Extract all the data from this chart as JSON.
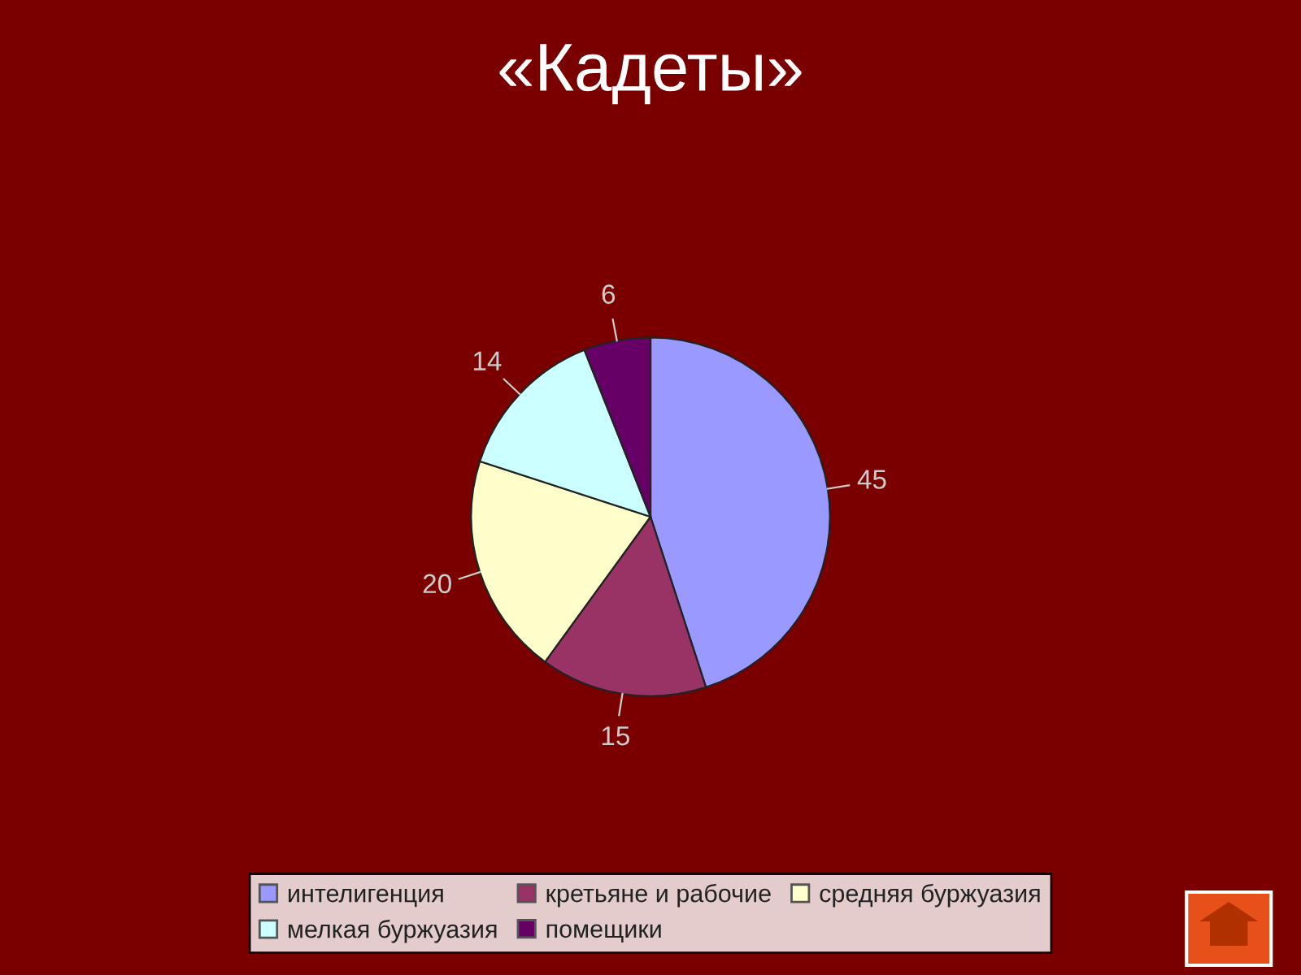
{
  "chart_data": {
    "type": "pie",
    "title": "«Кадеты»",
    "categories": [
      "интелигенция",
      "кретьяне и рабочие",
      "средняя буржуазия",
      "мелкая буржуазия",
      "помещики"
    ],
    "values": [
      45,
      15,
      20,
      14,
      6
    ],
    "colors": [
      "#9999ff",
      "#993366",
      "#ffffcc",
      "#ccffff",
      "#660066"
    ],
    "data_labels": true,
    "legend": "bottom"
  }
}
